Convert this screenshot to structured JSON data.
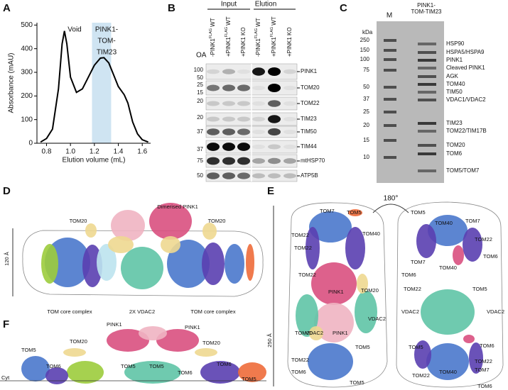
{
  "letters": [
    "A",
    "B",
    "C",
    "D",
    "E",
    "F"
  ],
  "chart_data": {
    "type": "line",
    "ylabel": "Absorbance (mAU)",
    "xlabel": "Elution volume (mL)",
    "annotations": [
      "Void",
      "PINK1-",
      "TOM-",
      "TIM23"
    ],
    "x": [
      0.75,
      0.8,
      0.85,
      0.9,
      0.93,
      0.95,
      0.97,
      1.0,
      1.05,
      1.1,
      1.15,
      1.2,
      1.25,
      1.28,
      1.32,
      1.36,
      1.4,
      1.45,
      1.48,
      1.52,
      1.56,
      1.6,
      1.65
    ],
    "values": [
      5,
      20,
      60,
      230,
      420,
      475,
      420,
      280,
      215,
      230,
      280,
      330,
      360,
      362,
      340,
      290,
      240,
      205,
      170,
      90,
      40,
      15,
      5
    ],
    "color": "#000000",
    "highlight": [
      1.18,
      1.34
    ],
    "highlight_color": "#cfe4f2",
    "xlim": [
      0.72,
      1.67
    ],
    "ylim": [
      0,
      510
    ],
    "xticks": [
      0.8,
      {
        "value": 1,
        "label": "1.0"
      },
      1.2,
      1.4,
      1.6
    ],
    "yticks": [
      0,
      100,
      200,
      300,
      400,
      500
    ]
  },
  "blot": {
    "groups": [
      "Input",
      "Elution"
    ],
    "oa_label": "OA",
    "lanes": [
      {
        "oa": "-",
        "label": "PINK1",
        "sup": "FLAG",
        "tail": "WT"
      },
      {
        "oa": "+",
        "label": "PINK1",
        "sup": "FLAG",
        "tail": "WT"
      },
      {
        "oa": "+",
        "label": "PINK1 KO"
      },
      {
        "oa": "-",
        "label": "PINK1",
        "sup": "FLAG",
        "tail": "WT"
      },
      {
        "oa": "+",
        "label": "PINK1",
        "sup": "FLAG",
        "tail": "WT"
      },
      {
        "oa": "+",
        "label": "PINK1 KO"
      }
    ],
    "markers": [
      100,
      50,
      25,
      15,
      20,
      20,
      37,
      37,
      75,
      50
    ],
    "bands": [
      "PINK1",
      "TOM20",
      "TOM22",
      "TIM23",
      "TIM50",
      "TIM44",
      "mtHSP70",
      "ATP5B"
    ]
  },
  "gel": {
    "lane_labels": [
      "M",
      "PINK1-",
      "TOM-TIM23"
    ],
    "unit": "kDa",
    "markers": [
      250,
      150,
      100,
      75,
      50,
      37,
      25,
      20,
      15,
      10
    ],
    "proteins": [
      "HSP90",
      "HSPA5/HSPA9",
      "PINK1",
      "Cleaved PINK1",
      "AGK",
      "TOM40",
      "TIM50",
      "VDAC1/VDAC2",
      "TIM23",
      "TOM22/TIM17B",
      "TOM20",
      "TOM6",
      "TOM5/TOM7"
    ]
  },
  "panel_d": {
    "labels": [
      "Dimerised PINK1",
      "TOM20",
      "TOM20",
      "120 Å",
      "TOM core complex",
      "2X VDAC2",
      "TOM core complex"
    ]
  },
  "panel_e": {
    "rotation": "180°",
    "height": "250 Å",
    "left_labels": [
      "TOM7",
      "TOM5",
      "TOM40",
      "TOM22",
      "TOM22",
      "TOM22",
      "PINK1",
      "TOM20",
      "VDAC2",
      "VDAC2",
      "PINK1",
      "TOM20",
      "TOM5",
      "TOM22",
      "TOM6",
      "TOM5"
    ],
    "right_labels": [
      "TOM5",
      "TOM40",
      "TOM7",
      "TOM22",
      "TOM6",
      "TOM7",
      "TOM40",
      "TOM6",
      "TOM22",
      "TOM5",
      "VDAC2",
      "VDAC2",
      "TOM5",
      "TOM6",
      "TOM40",
      "TOM22",
      "TOM7",
      "TOM22",
      "TOM6"
    ]
  },
  "panel_f": {
    "labels": [
      "PINK1",
      "PINK1",
      "TOM20",
      "TOM20",
      "TOM5",
      "TOM6",
      "TOM5",
      "TOM5",
      "TOM6",
      "TOM6",
      "TOM5",
      "Cyt"
    ]
  }
}
